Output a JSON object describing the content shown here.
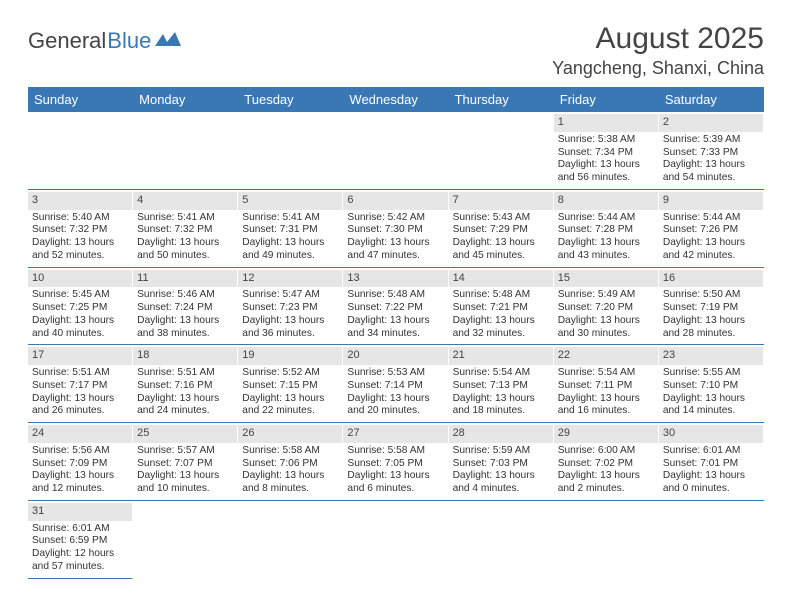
{
  "logo": {
    "text1": "General",
    "text2": "Blue"
  },
  "title": "August 2025",
  "location": "Yangcheng, Shanxi, China",
  "colors": {
    "header_bg": "#3a78b5",
    "header_text": "#ffffff",
    "daynum_bg": "#e6e6e6",
    "row_border": "#3a78b5",
    "text": "#333333"
  },
  "day_names": [
    "Sunday",
    "Monday",
    "Tuesday",
    "Wednesday",
    "Thursday",
    "Friday",
    "Saturday"
  ],
  "weeks": [
    [
      {
        "empty": true
      },
      {
        "empty": true
      },
      {
        "empty": true
      },
      {
        "empty": true
      },
      {
        "empty": true
      },
      {
        "num": "1",
        "sunrise": "Sunrise: 5:38 AM",
        "sunset": "Sunset: 7:34 PM",
        "day1": "Daylight: 13 hours",
        "day2": "and 56 minutes."
      },
      {
        "num": "2",
        "sunrise": "Sunrise: 5:39 AM",
        "sunset": "Sunset: 7:33 PM",
        "day1": "Daylight: 13 hours",
        "day2": "and 54 minutes."
      }
    ],
    [
      {
        "num": "3",
        "sunrise": "Sunrise: 5:40 AM",
        "sunset": "Sunset: 7:32 PM",
        "day1": "Daylight: 13 hours",
        "day2": "and 52 minutes."
      },
      {
        "num": "4",
        "sunrise": "Sunrise: 5:41 AM",
        "sunset": "Sunset: 7:32 PM",
        "day1": "Daylight: 13 hours",
        "day2": "and 50 minutes."
      },
      {
        "num": "5",
        "sunrise": "Sunrise: 5:41 AM",
        "sunset": "Sunset: 7:31 PM",
        "day1": "Daylight: 13 hours",
        "day2": "and 49 minutes."
      },
      {
        "num": "6",
        "sunrise": "Sunrise: 5:42 AM",
        "sunset": "Sunset: 7:30 PM",
        "day1": "Daylight: 13 hours",
        "day2": "and 47 minutes."
      },
      {
        "num": "7",
        "sunrise": "Sunrise: 5:43 AM",
        "sunset": "Sunset: 7:29 PM",
        "day1": "Daylight: 13 hours",
        "day2": "and 45 minutes."
      },
      {
        "num": "8",
        "sunrise": "Sunrise: 5:44 AM",
        "sunset": "Sunset: 7:28 PM",
        "day1": "Daylight: 13 hours",
        "day2": "and 43 minutes."
      },
      {
        "num": "9",
        "sunrise": "Sunrise: 5:44 AM",
        "sunset": "Sunset: 7:26 PM",
        "day1": "Daylight: 13 hours",
        "day2": "and 42 minutes."
      }
    ],
    [
      {
        "num": "10",
        "sunrise": "Sunrise: 5:45 AM",
        "sunset": "Sunset: 7:25 PM",
        "day1": "Daylight: 13 hours",
        "day2": "and 40 minutes."
      },
      {
        "num": "11",
        "sunrise": "Sunrise: 5:46 AM",
        "sunset": "Sunset: 7:24 PM",
        "day1": "Daylight: 13 hours",
        "day2": "and 38 minutes."
      },
      {
        "num": "12",
        "sunrise": "Sunrise: 5:47 AM",
        "sunset": "Sunset: 7:23 PM",
        "day1": "Daylight: 13 hours",
        "day2": "and 36 minutes."
      },
      {
        "num": "13",
        "sunrise": "Sunrise: 5:48 AM",
        "sunset": "Sunset: 7:22 PM",
        "day1": "Daylight: 13 hours",
        "day2": "and 34 minutes."
      },
      {
        "num": "14",
        "sunrise": "Sunrise: 5:48 AM",
        "sunset": "Sunset: 7:21 PM",
        "day1": "Daylight: 13 hours",
        "day2": "and 32 minutes."
      },
      {
        "num": "15",
        "sunrise": "Sunrise: 5:49 AM",
        "sunset": "Sunset: 7:20 PM",
        "day1": "Daylight: 13 hours",
        "day2": "and 30 minutes."
      },
      {
        "num": "16",
        "sunrise": "Sunrise: 5:50 AM",
        "sunset": "Sunset: 7:19 PM",
        "day1": "Daylight: 13 hours",
        "day2": "and 28 minutes."
      }
    ],
    [
      {
        "num": "17",
        "sunrise": "Sunrise: 5:51 AM",
        "sunset": "Sunset: 7:17 PM",
        "day1": "Daylight: 13 hours",
        "day2": "and 26 minutes."
      },
      {
        "num": "18",
        "sunrise": "Sunrise: 5:51 AM",
        "sunset": "Sunset: 7:16 PM",
        "day1": "Daylight: 13 hours",
        "day2": "and 24 minutes."
      },
      {
        "num": "19",
        "sunrise": "Sunrise: 5:52 AM",
        "sunset": "Sunset: 7:15 PM",
        "day1": "Daylight: 13 hours",
        "day2": "and 22 minutes."
      },
      {
        "num": "20",
        "sunrise": "Sunrise: 5:53 AM",
        "sunset": "Sunset: 7:14 PM",
        "day1": "Daylight: 13 hours",
        "day2": "and 20 minutes."
      },
      {
        "num": "21",
        "sunrise": "Sunrise: 5:54 AM",
        "sunset": "Sunset: 7:13 PM",
        "day1": "Daylight: 13 hours",
        "day2": "and 18 minutes."
      },
      {
        "num": "22",
        "sunrise": "Sunrise: 5:54 AM",
        "sunset": "Sunset: 7:11 PM",
        "day1": "Daylight: 13 hours",
        "day2": "and 16 minutes."
      },
      {
        "num": "23",
        "sunrise": "Sunrise: 5:55 AM",
        "sunset": "Sunset: 7:10 PM",
        "day1": "Daylight: 13 hours",
        "day2": "and 14 minutes."
      }
    ],
    [
      {
        "num": "24",
        "sunrise": "Sunrise: 5:56 AM",
        "sunset": "Sunset: 7:09 PM",
        "day1": "Daylight: 13 hours",
        "day2": "and 12 minutes."
      },
      {
        "num": "25",
        "sunrise": "Sunrise: 5:57 AM",
        "sunset": "Sunset: 7:07 PM",
        "day1": "Daylight: 13 hours",
        "day2": "and 10 minutes."
      },
      {
        "num": "26",
        "sunrise": "Sunrise: 5:58 AM",
        "sunset": "Sunset: 7:06 PM",
        "day1": "Daylight: 13 hours",
        "day2": "and 8 minutes."
      },
      {
        "num": "27",
        "sunrise": "Sunrise: 5:58 AM",
        "sunset": "Sunset: 7:05 PM",
        "day1": "Daylight: 13 hours",
        "day2": "and 6 minutes."
      },
      {
        "num": "28",
        "sunrise": "Sunrise: 5:59 AM",
        "sunset": "Sunset: 7:03 PM",
        "day1": "Daylight: 13 hours",
        "day2": "and 4 minutes."
      },
      {
        "num": "29",
        "sunrise": "Sunrise: 6:00 AM",
        "sunset": "Sunset: 7:02 PM",
        "day1": "Daylight: 13 hours",
        "day2": "and 2 minutes."
      },
      {
        "num": "30",
        "sunrise": "Sunrise: 6:01 AM",
        "sunset": "Sunset: 7:01 PM",
        "day1": "Daylight: 13 hours",
        "day2": "and 0 minutes."
      }
    ],
    [
      {
        "num": "31",
        "sunrise": "Sunrise: 6:01 AM",
        "sunset": "Sunset: 6:59 PM",
        "day1": "Daylight: 12 hours",
        "day2": "and 57 minutes."
      },
      {
        "empty": true
      },
      {
        "empty": true
      },
      {
        "empty": true
      },
      {
        "empty": true
      },
      {
        "empty": true
      },
      {
        "empty": true
      }
    ]
  ]
}
